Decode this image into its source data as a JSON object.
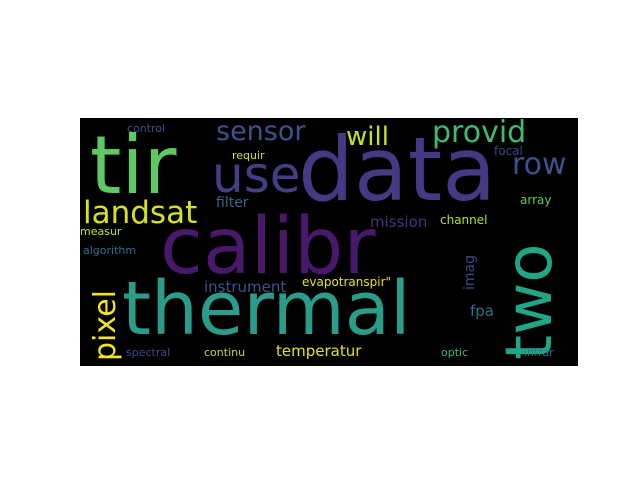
{
  "words": [
    {
      "id": "data",
      "text": "data",
      "color": "#443a83"
    },
    {
      "id": "thermal",
      "text": "thermal",
      "color": "#2a9d8a"
    },
    {
      "id": "calibr",
      "text": "calibr",
      "color": "#48186a"
    },
    {
      "id": "tir",
      "text": "tir",
      "color": "#5ec962"
    },
    {
      "id": "two",
      "text": "two",
      "color": "#21a685"
    },
    {
      "id": "use",
      "text": "use",
      "color": "#433e85"
    },
    {
      "id": "landsat",
      "text": "landsat",
      "color": "#d8e219"
    },
    {
      "id": "pixel",
      "text": "pixel",
      "color": "#f4e61e"
    },
    {
      "id": "sensor",
      "text": "sensor",
      "color": "#3b528b"
    },
    {
      "id": "will",
      "text": "will",
      "color": "#c8e020"
    },
    {
      "id": "provid",
      "text": "provid",
      "color": "#3fbc73"
    },
    {
      "id": "row",
      "text": "row",
      "color": "#3b528b"
    },
    {
      "id": "mission",
      "text": "mission",
      "color": "#46327e"
    },
    {
      "id": "temperatur",
      "text": "temperatur",
      "color": "#e2e418"
    },
    {
      "id": "instrument",
      "text": "instrument",
      "color": "#3a538b"
    },
    {
      "id": "filter",
      "text": "filter",
      "color": "#31688e"
    },
    {
      "id": "fpa",
      "text": "fpa",
      "color": "#2c728e"
    },
    {
      "id": "imag",
      "text": "imag",
      "color": "#3e4989"
    },
    {
      "id": "evapotranspir",
      "text": "evapotranspir\"",
      "color": "#e7e419"
    },
    {
      "id": "channel",
      "text": "channel",
      "color": "#b5de2b"
    },
    {
      "id": "array",
      "text": "array",
      "color": "#5ec962"
    },
    {
      "id": "focal",
      "text": "focal",
      "color": "#414487"
    },
    {
      "id": "requir",
      "text": "requir",
      "color": "#cde11d"
    },
    {
      "id": "control",
      "text": "control",
      "color": "#3b528b"
    },
    {
      "id": "measur",
      "text": "measur",
      "color": "#cae11f"
    },
    {
      "id": "algorithm",
      "text": "algorithm",
      "color": "#2c728e"
    },
    {
      "id": "spectral",
      "text": "spectral",
      "color": "#3e4989"
    },
    {
      "id": "continu",
      "text": "continu",
      "color": "#b5de2b"
    },
    {
      "id": "optic",
      "text": "optic",
      "color": "#35b779"
    },
    {
      "id": "infrar",
      "text": "infrar",
      "color": "#2a768e"
    }
  ]
}
